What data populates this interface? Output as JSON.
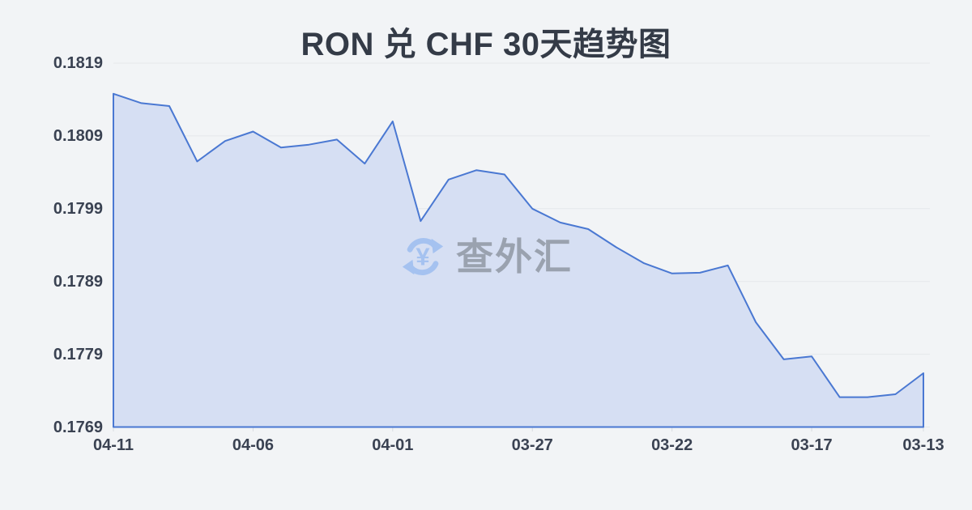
{
  "header": {
    "title": "RON 兑 CHF 30天趋势图"
  },
  "watermark": {
    "text": "查外汇",
    "icon": "currency-exchange-icon"
  },
  "colors": {
    "background": "#f2f4f6",
    "title": "#343b47",
    "axis_label": "#3a4252",
    "line": "#4a78d2",
    "fill": "#d6dff3",
    "grid": "#e5e8eb",
    "tick": "#d8dbe0",
    "watermark_icon": "#a5c2f0",
    "watermark_text": "#9aa2af"
  },
  "chart_data": {
    "type": "area",
    "title": "RON 兑 CHF 30天趋势图",
    "x": [
      "04-11",
      "04-10",
      "04-09",
      "04-08",
      "04-07",
      "04-06",
      "04-05",
      "04-04",
      "04-03",
      "04-02",
      "04-01",
      "03-31",
      "03-30",
      "03-29",
      "03-28",
      "03-27",
      "03-26",
      "03-25",
      "03-24",
      "03-23",
      "03-22",
      "03-21",
      "03-20",
      "03-19",
      "03-18",
      "03-17",
      "03-16",
      "03-15",
      "03-14",
      "03-13"
    ],
    "values": [
      0.18148,
      0.18135,
      0.18131,
      0.18055,
      0.18083,
      0.18096,
      0.18074,
      0.18078,
      0.18085,
      0.18052,
      0.1811,
      0.17973,
      0.1803,
      0.18043,
      0.18037,
      0.1799,
      0.17971,
      0.17962,
      0.17937,
      0.17915,
      0.17901,
      0.17902,
      0.17912,
      0.17834,
      0.17783,
      0.17787,
      0.17731,
      0.17731,
      0.17735,
      0.17764
    ],
    "x_tick_labels": [
      "04-11",
      "04-06",
      "04-01",
      "03-27",
      "03-22",
      "03-17",
      "03-13"
    ],
    "y_ticks": [
      "0.1819",
      "0.1809",
      "0.1799",
      "0.1789",
      "0.1779",
      "0.1769"
    ],
    "ylim": [
      0.1769,
      0.1819
    ],
    "xlabel": "",
    "ylabel": "",
    "grid": true,
    "legend": "none",
    "x_axis_reversed_time": true
  }
}
